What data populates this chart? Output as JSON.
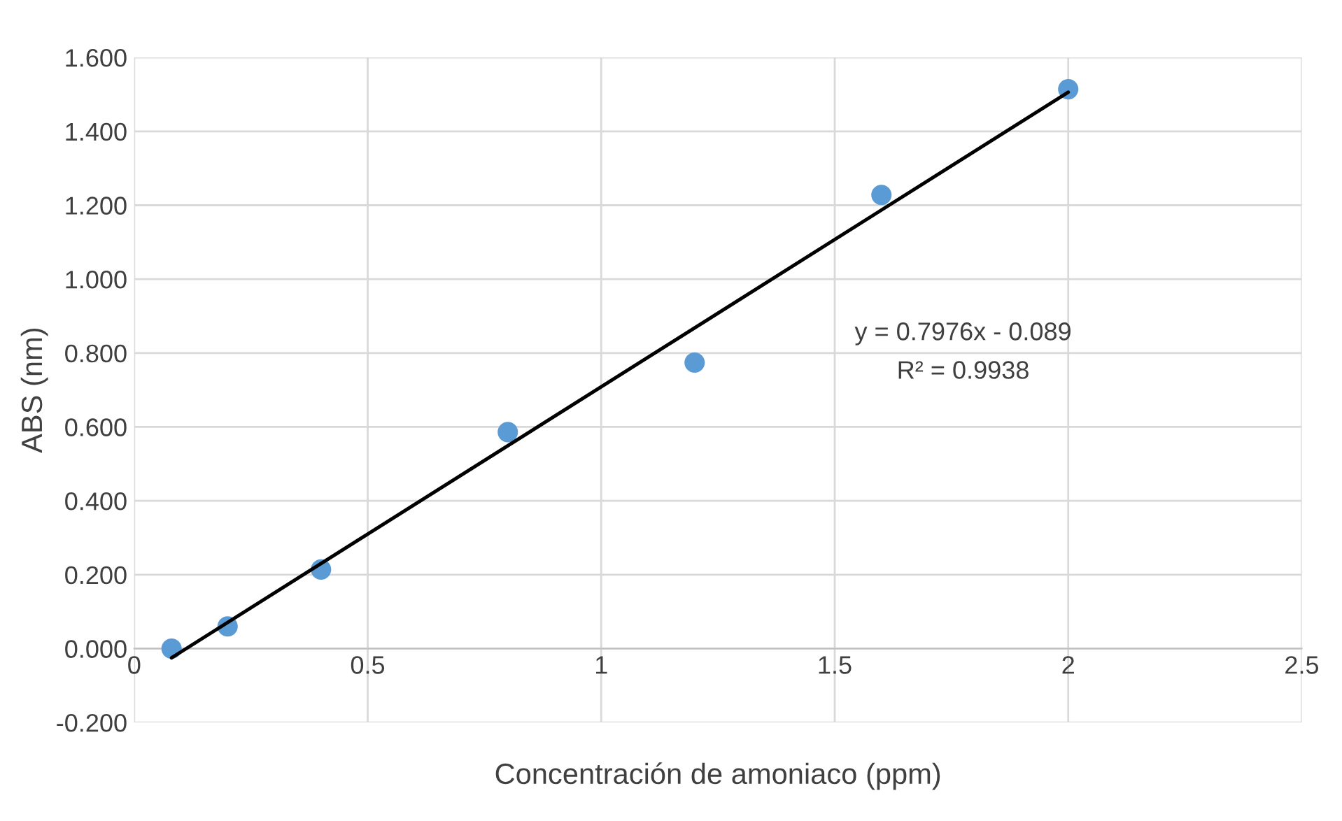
{
  "chart_data": {
    "type": "scatter",
    "xlabel": "Concentración de amoniaco (ppm)",
    "ylabel": "ABS (nm)",
    "series": [
      {
        "color": "#5b9bd5",
        "x": [
          0.08,
          0.2,
          0.4,
          0.8,
          1.2,
          1.6,
          2.0
        ],
        "values": [
          0.0,
          0.06,
          0.214,
          0.586,
          0.774,
          1.228,
          1.514
        ],
        "marker": "circle"
      },
      {
        "type": "line",
        "color": "#000000",
        "x": [
          0.08,
          2.0
        ],
        "values": [
          -0.025,
          1.506
        ],
        "marker": "none"
      }
    ],
    "xlim": [
      0,
      2.5
    ],
    "xticks": [
      0,
      0.5,
      1,
      1.5,
      2,
      2.5
    ],
    "ylim": [
      -0.2,
      1.6
    ],
    "yticks": [
      {
        "value": -0.2,
        "label": "-0.200"
      },
      {
        "value": 0,
        "label": "0.000"
      },
      {
        "value": 0.2,
        "label": "0.200"
      },
      {
        "value": 0.4,
        "label": "0.400"
      },
      {
        "value": 0.6,
        "label": "0.600"
      },
      {
        "value": 0.8,
        "label": "0.800"
      },
      {
        "value": 1.0,
        "label": "1.000"
      },
      {
        "value": 1.2,
        "label": "1.200"
      },
      {
        "value": 1.4,
        "label": "1.400"
      },
      {
        "value": 1.6,
        "label": "1.600"
      }
    ],
    "grid": true,
    "annotations": [
      "y = 0.7976x - 0.089",
      "R² = 0.9938"
    ]
  }
}
